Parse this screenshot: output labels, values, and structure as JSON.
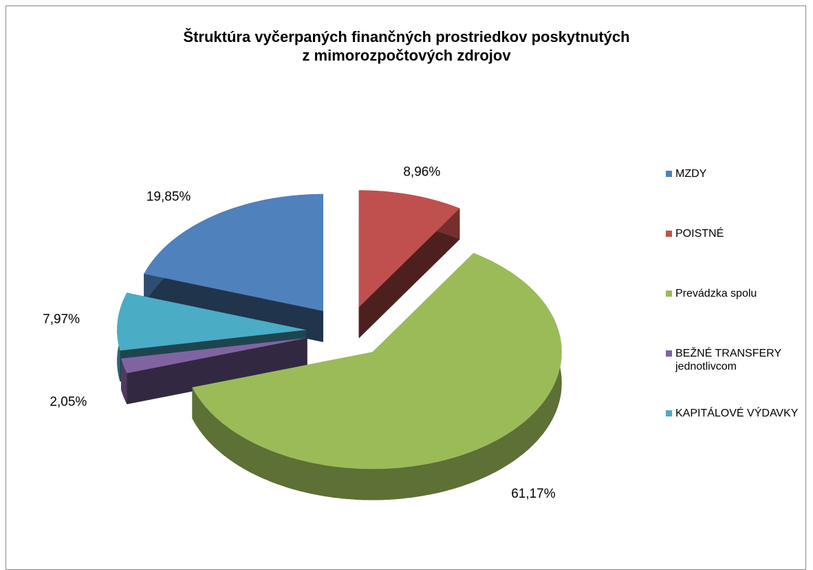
{
  "chart_data": {
    "type": "pie3d",
    "title": "Štruktúra vyčerpaných finančných prostriedkov poskytnutých\nz mimorozpočtových zdrojov",
    "categories": [
      "MZDY",
      "POISTNÉ",
      "Prevádzka spolu",
      "BEŽNÉ TRANSFERY jednotlivcom",
      "KAPITÁLOVÉ VÝDAVKY"
    ],
    "values": [
      19.85,
      8.96,
      61.17,
      2.05,
      7.97
    ],
    "value_labels": [
      "19,85%",
      "8,96%",
      "61,17%",
      "2,05%",
      "7,97%"
    ],
    "colors": [
      "#4f81bd",
      "#c0504d",
      "#9bbb59",
      "#8064a2",
      "#4bacc6"
    ],
    "legend": "right"
  }
}
